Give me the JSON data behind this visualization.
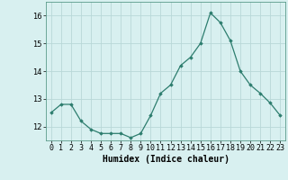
{
  "x": [
    0,
    1,
    2,
    3,
    4,
    5,
    6,
    7,
    8,
    9,
    10,
    11,
    12,
    13,
    14,
    15,
    16,
    17,
    18,
    19,
    20,
    21,
    22,
    23
  ],
  "y": [
    12.5,
    12.8,
    12.8,
    12.2,
    11.9,
    11.75,
    11.75,
    11.75,
    11.6,
    11.75,
    12.4,
    13.2,
    13.5,
    14.2,
    14.5,
    15.0,
    16.1,
    15.75,
    15.1,
    14.0,
    13.5,
    13.2,
    12.85,
    12.4
  ],
  "line_color": "#2d7d6e",
  "marker_color": "#2d7d6e",
  "bg_color": "#d8f0f0",
  "grid_major_color": "#b8d8d8",
  "xlabel": "Humidex (Indice chaleur)",
  "ylim": [
    11.5,
    16.5
  ],
  "xlim": [
    -0.5,
    23.5
  ],
  "yticks": [
    12,
    13,
    14,
    15,
    16
  ],
  "xticks": [
    0,
    1,
    2,
    3,
    4,
    5,
    6,
    7,
    8,
    9,
    10,
    11,
    12,
    13,
    14,
    15,
    16,
    17,
    18,
    19,
    20,
    21,
    22,
    23
  ],
  "xlabel_fontsize": 7,
  "tick_fontsize": 6
}
